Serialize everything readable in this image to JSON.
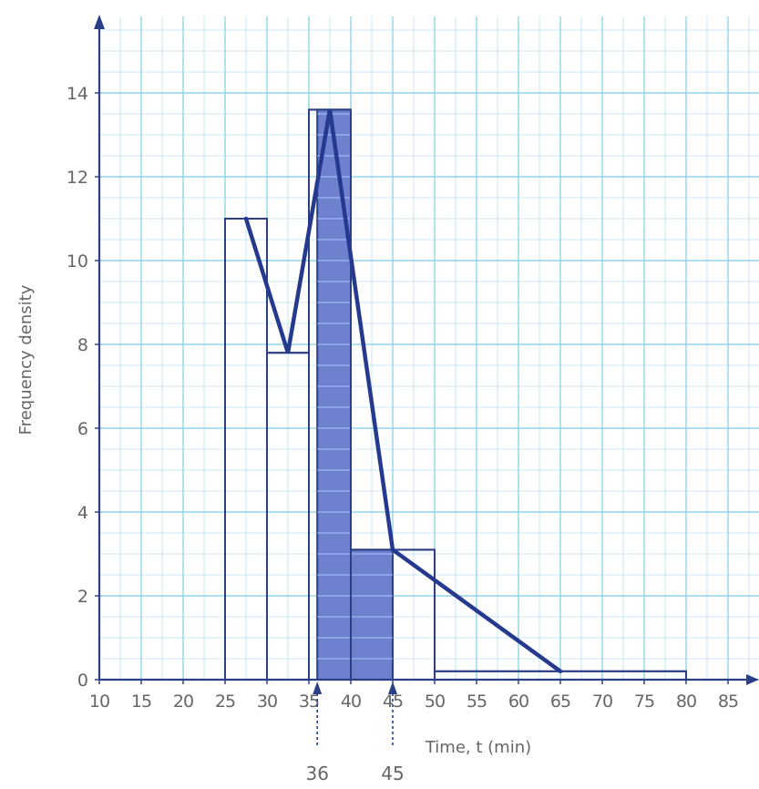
{
  "chart_data": {
    "type": "histogram",
    "xlabel": "Time, t (min)",
    "ylabel": "Frequency density",
    "xlim": [
      10,
      87
    ],
    "ylim": [
      0,
      15
    ],
    "x_ticks": [
      10,
      15,
      20,
      25,
      30,
      35,
      40,
      45,
      50,
      55,
      60,
      65,
      70,
      75,
      80,
      85
    ],
    "y_ticks": [
      0,
      2,
      4,
      6,
      8,
      10,
      12,
      14
    ],
    "grid": true,
    "bars": [
      {
        "start": 25,
        "end": 30,
        "density": 11
      },
      {
        "start": 30,
        "end": 35,
        "density": 7.8
      },
      {
        "start": 35,
        "end": 40,
        "density": 13.6
      },
      {
        "start": 40,
        "end": 50,
        "density": 3.1
      },
      {
        "start": 50,
        "end": 80,
        "density": 0.2
      }
    ],
    "shaded_region": {
      "start": 36,
      "end": 45
    },
    "frequency_polygon": {
      "x": [
        27.5,
        32.5,
        37.5,
        45,
        65
      ],
      "y": [
        11,
        7.8,
        13.6,
        3.1,
        0.2
      ]
    },
    "markers": [
      {
        "x": 36,
        "label": "36"
      },
      {
        "x": 45,
        "label": "45"
      }
    ],
    "colors": {
      "background": "#ffffff",
      "grid": "#88d0e8",
      "axis": "#2b3f86",
      "bar_edge": "#2b3f86",
      "shade": "#6f80cf",
      "shade_line": "#a9c8ff",
      "polygon": "#253a8e",
      "text": "#666666",
      "marker": "#2b3f86"
    }
  }
}
